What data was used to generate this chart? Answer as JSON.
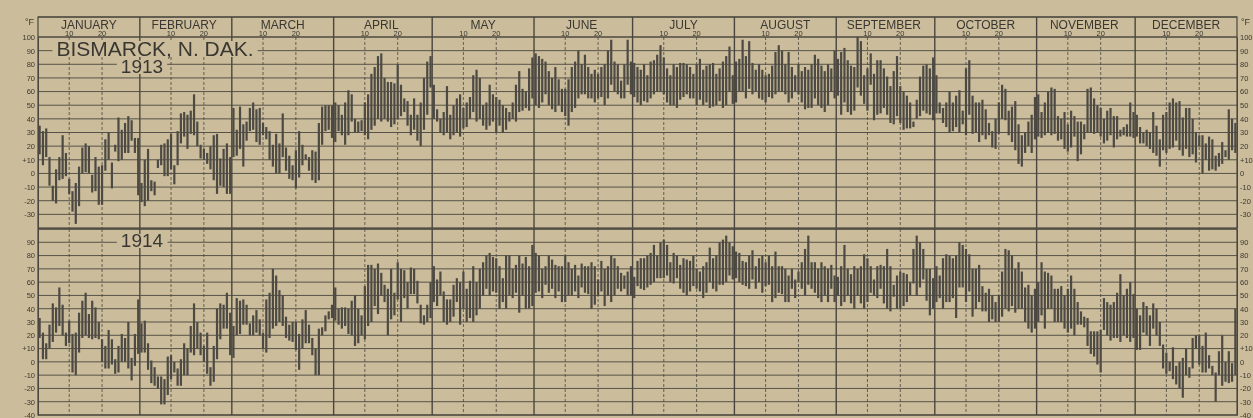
{
  "chart_data": [
    {
      "type": "bar",
      "title": "BISMARCK, N. DAK.",
      "annotations": [
        "1913"
      ],
      "ylabel": "°F",
      "y2label": "°F",
      "color": "#4d4a44",
      "grid": true,
      "xlim": [
        "--01-01",
        "--12-31"
      ],
      "x2lim": [
        "--01-01",
        "--12-31"
      ],
      "xticks": [
        {
          "value": "--01-10",
          "label": "10"
        },
        {
          "value": "--01-20",
          "label": "20"
        },
        {
          "value": "--02-01",
          "label": null
        },
        {
          "value": "--02-10",
          "label": "10"
        },
        {
          "value": "--02-20",
          "label": "20"
        },
        {
          "value": "--03-01",
          "label": null
        },
        {
          "value": "--03-10",
          "label": "10"
        },
        {
          "value": "--03-20",
          "label": "20"
        },
        {
          "value": "--04-01",
          "label": null
        },
        {
          "value": "--04-10",
          "label": "10"
        },
        {
          "value": "--04-20",
          "label": "20"
        },
        {
          "value": "--05-01",
          "label": null
        },
        {
          "value": "--05-10",
          "label": "10"
        },
        {
          "value": "--05-20",
          "label": "20"
        },
        {
          "value": "--06-01",
          "label": null
        },
        {
          "value": "--06-10",
          "label": "10"
        },
        {
          "value": "--06-20",
          "label": "20"
        },
        {
          "value": "--07-01",
          "label": null
        },
        {
          "value": "--07-10",
          "label": "10"
        },
        {
          "value": "--07-20",
          "label": "20"
        },
        {
          "value": "--08-01",
          "label": null
        },
        {
          "value": "--08-10",
          "label": "10"
        },
        {
          "value": "--08-20",
          "label": "20"
        },
        {
          "value": "--09-01",
          "label": null
        },
        {
          "value": "--09-10",
          "label": "10"
        },
        {
          "value": "--09-20",
          "label": "20"
        },
        {
          "value": "--10-01",
          "label": null
        },
        {
          "value": "--10-10",
          "label": "10"
        },
        {
          "value": "--10-20",
          "label": "20"
        },
        {
          "value": "--11-01",
          "label": null
        },
        {
          "value": "--11-10",
          "label": "10"
        },
        {
          "value": "--11-20",
          "label": "20"
        },
        {
          "value": "--12-01",
          "label": null
        },
        {
          "value": "--12-10",
          "label": "10"
        },
        {
          "value": "--12-20",
          "label": "20"
        }
      ],
      "x2ticks": [
        {
          "value": "--01-16",
          "label": "JANUARY"
        },
        {
          "value": "--02-14",
          "label": "FEBRUARY"
        },
        {
          "value": "--03-16",
          "label": "MARCH"
        },
        {
          "value": "--04-15",
          "label": "APRIL"
        },
        {
          "value": "--05-16",
          "label": "MAY"
        },
        {
          "value": "--06-15",
          "label": "JUNE"
        },
        {
          "value": "--07-16",
          "label": "JULY"
        },
        {
          "value": "--08-16",
          "label": "AUGUST"
        },
        {
          "value": "--09-15",
          "label": "SEPTEMBER"
        },
        {
          "value": "--10-16",
          "label": "OCTOBER"
        },
        {
          "value": "--11-15",
          "label": "NOVEMBER"
        },
        {
          "value": "--12-16",
          "label": "DECEMBER"
        }
      ],
      "ylim": [
        -40,
        100
      ],
      "yticks": [
        100,
        90,
        80,
        70,
        60,
        50,
        40,
        30,
        20,
        {
          "value": 10,
          "label": "+10"
        },
        0,
        -10,
        -20,
        -30
      ],
      "y2lim": [
        -40,
        100
      ],
      "y2ticks": [
        100,
        90,
        80,
        70,
        60,
        50,
        40,
        30,
        20,
        {
          "value": 10,
          "label": "+10"
        },
        0,
        -10,
        -20,
        -30
      ],
      "x": [
        "--01-01",
        "--01-02",
        "--01-03",
        "--01-04",
        "--01-05",
        "--01-06",
        "--01-07",
        "--01-08",
        "--01-09",
        "--01-10",
        "--01-11",
        "--01-12",
        "--01-13",
        "--01-14",
        "--01-15",
        "--01-16",
        "--01-17",
        "--01-18",
        "--01-19",
        "--01-20",
        "--01-21",
        "--01-22",
        "--01-23",
        "--01-24",
        "--01-25",
        "--01-26",
        "--01-27",
        "--01-28",
        "--01-29",
        "--01-30",
        "--01-31",
        "--02-01",
        "--02-02",
        "--02-03",
        "--02-04",
        "--02-05",
        "--02-06",
        "--02-07",
        "--02-08",
        "--02-09",
        "--02-10",
        "--02-11",
        "--02-12",
        "--02-13",
        "--02-14",
        "--02-15",
        "--02-16",
        "--02-17",
        "--02-18",
        "--02-19",
        "--02-20",
        "--02-21",
        "--02-22",
        "--02-23",
        "--02-24",
        "--02-25",
        "--02-26",
        "--02-27",
        "--02-28",
        "--03-01",
        "--03-02",
        "--03-03",
        "--03-04",
        "--03-05",
        "--03-06",
        "--03-07",
        "--03-08",
        "--03-09",
        "--03-10",
        "--03-11",
        "--03-12",
        "--03-13",
        "--03-14",
        "--03-15",
        "--03-16",
        "--03-17",
        "--03-18",
        "--03-19",
        "--03-20",
        "--03-21",
        "--03-22",
        "--03-23",
        "--03-24",
        "--03-25",
        "--03-26",
        "--03-27",
        "--03-28",
        "--03-29",
        "--03-30",
        "--03-31",
        "--04-01",
        "--04-02",
        "--04-03",
        "--04-04",
        "--04-05",
        "--04-06",
        "--04-07",
        "--04-08",
        "--04-09",
        "--04-10",
        "--04-11",
        "--04-12",
        "--04-13",
        "--04-14",
        "--04-15",
        "--04-16",
        "--04-17",
        "--04-18",
        "--04-19",
        "--04-20",
        "--04-21",
        "--04-22",
        "--04-23",
        "--04-24",
        "--04-25",
        "--04-26",
        "--04-27",
        "--04-28",
        "--04-29",
        "--04-30",
        "--05-01",
        "--05-02",
        "--05-03",
        "--05-04",
        "--05-05",
        "--05-06",
        "--05-07",
        "--05-08",
        "--05-09",
        "--05-10",
        "--05-11",
        "--05-12",
        "--05-13",
        "--05-14",
        "--05-15",
        "--05-16",
        "--05-17",
        "--05-18",
        "--05-19",
        "--05-20",
        "--05-21",
        "--05-22",
        "--05-23",
        "--05-24",
        "--05-25",
        "--05-26",
        "--05-27",
        "--05-28",
        "--05-29",
        "--05-30",
        "--05-31",
        "--06-01",
        "--06-02",
        "--06-03",
        "--06-04",
        "--06-05",
        "--06-06",
        "--06-07",
        "--06-08",
        "--06-09",
        "--06-10",
        "--06-11",
        "--06-12",
        "--06-13",
        "--06-14",
        "--06-15",
        "--06-16",
        "--06-17",
        "--06-18",
        "--06-19",
        "--06-20",
        "--06-21",
        "--06-22",
        "--06-23",
        "--06-24",
        "--06-25",
        "--06-26",
        "--06-27",
        "--06-28",
        "--06-29",
        "--06-30",
        "--07-01",
        "--07-02",
        "--07-03",
        "--07-04",
        "--07-05",
        "--07-06",
        "--07-07",
        "--07-08",
        "--07-09",
        "--07-10",
        "--07-11",
        "--07-12",
        "--07-13",
        "--07-14",
        "--07-15",
        "--07-16",
        "--07-17",
        "--07-18",
        "--07-19",
        "--07-20",
        "--07-21",
        "--07-22",
        "--07-23",
        "--07-24",
        "--07-25",
        "--07-26",
        "--07-27",
        "--07-28",
        "--07-29",
        "--07-30",
        "--07-31",
        "--08-01",
        "--08-02",
        "--08-03",
        "--08-04",
        "--08-05",
        "--08-06",
        "--08-07",
        "--08-08",
        "--08-09",
        "--08-10",
        "--08-11",
        "--08-12",
        "--08-13",
        "--08-14",
        "--08-15",
        "--08-16",
        "--08-17",
        "--08-18",
        "--08-19",
        "--08-20",
        "--08-21",
        "--08-22",
        "--08-23",
        "--08-24",
        "--08-25",
        "--08-26",
        "--08-27",
        "--08-28",
        "--08-29",
        "--08-30",
        "--08-31",
        "--09-01",
        "--09-02",
        "--09-03",
        "--09-04",
        "--09-05",
        "--09-06",
        "--09-07",
        "--09-08",
        "--09-09",
        "--09-10",
        "--09-11",
        "--09-12",
        "--09-13",
        "--09-14",
        "--09-15",
        "--09-16",
        "--09-17",
        "--09-18",
        "--09-19",
        "--09-20",
        "--09-21",
        "--09-22",
        "--09-23",
        "--09-24",
        "--09-25",
        "--09-26",
        "--09-27",
        "--09-28",
        "--09-29",
        "--09-30",
        "--10-01",
        "--10-02",
        "--10-03",
        "--10-04",
        "--10-05",
        "--10-06",
        "--10-07",
        "--10-08",
        "--10-09",
        "--10-10",
        "--10-11",
        "--10-12",
        "--10-13",
        "--10-14",
        "--10-15",
        "--10-16",
        "--10-17",
        "--10-18",
        "--10-19",
        "--10-20",
        "--10-21",
        "--10-22",
        "--10-23",
        "--10-24",
        "--10-25",
        "--10-26",
        "--10-27",
        "--10-28",
        "--10-29",
        "--10-30",
        "--10-31",
        "--11-01",
        "--11-02",
        "--11-03",
        "--11-04",
        "--11-05",
        "--11-06",
        "--11-07",
        "--11-08",
        "--11-09",
        "--11-10",
        "--11-11",
        "--11-12",
        "--11-13",
        "--11-14",
        "--11-15",
        "--11-16",
        "--11-17",
        "--11-18",
        "--11-19",
        "--11-20",
        "--11-21",
        "--11-22",
        "--11-23",
        "--11-24",
        "--11-25",
        "--11-26",
        "--11-27",
        "--11-28",
        "--11-29",
        "--11-30",
        "--12-01",
        "--12-02",
        "--12-03",
        "--12-04",
        "--12-05",
        "--12-06",
        "--12-07",
        "--12-08",
        "--12-09",
        "--12-10",
        "--12-11",
        "--12-12",
        "--12-13",
        "--12-14",
        "--12-15",
        "--12-16",
        "--12-17",
        "--12-18",
        "--12-19",
        "--12-20",
        "--12-21",
        "--12-22",
        "--12-23",
        "--12-24",
        "--12-25",
        "--12-26",
        "--12-27",
        "--12-28",
        "--12-29",
        "--12-30",
        "--12-31"
      ],
      "base": [
        14,
        6,
        12,
        -9,
        -20,
        -22,
        -5,
        -4,
        -2,
        -15,
        -28,
        -37,
        -24,
        0,
        1,
        0,
        -14,
        -13,
        -23,
        -23,
        2,
        10,
        -11,
        16,
        9,
        10,
        15,
        15,
        24,
        15,
        -16,
        -21,
        -24,
        -20,
        -13,
        -16,
        4,
        6,
        -2,
        -2,
        3,
        -8,
        6,
        22,
        27,
        18,
        29,
        28,
        20,
        11,
        10,
        7,
        3,
        -5,
        -15,
        -9,
        -10,
        -15,
        -15,
        12,
        13,
        18,
        5,
        24,
        31,
        32,
        23,
        21,
        28,
        25,
        10,
        5,
        0,
        0,
        12,
        2,
        -4,
        -5,
        -11,
        -3,
        6,
        10,
        2,
        -5,
        -7,
        -5,
        21,
        31,
        32,
        26,
        23,
        31,
        28,
        21,
        28,
        38,
        30,
        30,
        31,
        28,
        25,
        32,
        35,
        40,
        38,
        40,
        38,
        34,
        36,
        40,
        42,
        45,
        35,
        28,
        32,
        24,
        20,
        32,
        43,
        63,
        40,
        38,
        30,
        28,
        30,
        25,
        28,
        30,
        27,
        33,
        34,
        40,
        45,
        38,
        40,
        35,
        32,
        35,
        38,
        30,
        35,
        30,
        32,
        38,
        40,
        38,
        45,
        46,
        48,
        46,
        55,
        50,
        48,
        52,
        58,
        50,
        47,
        45,
        50,
        45,
        42,
        35,
        45,
        48,
        55,
        58,
        58,
        55,
        55,
        52,
        55,
        56,
        50,
        55,
        65,
        60,
        58,
        55,
        55,
        65,
        58,
        56,
        52,
        50,
        53,
        52,
        55,
        58,
        60,
        60,
        58,
        52,
        50,
        50,
        48,
        54,
        56,
        58,
        55,
        55,
        50,
        54,
        50,
        52,
        48,
        49,
        50,
        53,
        48,
        50,
        60,
        51,
        52,
        60,
        60,
        55,
        62,
        58,
        60,
        55,
        54,
        52,
        56,
        55,
        58,
        60,
        60,
        58,
        52,
        55,
        60,
        58,
        52,
        47,
        48,
        48,
        55,
        50,
        48,
        45,
        50,
        60,
        55,
        57,
        43,
        52,
        45,
        43,
        46,
        63,
        57,
        51,
        46,
        65,
        39,
        43,
        44,
        48,
        43,
        37,
        36,
        42,
        37,
        32,
        33,
        33,
        34,
        40,
        42,
        46,
        44,
        43,
        39,
        44,
        44,
        37,
        34,
        30,
        31,
        34,
        30,
        36,
        28,
        43,
        29,
        30,
        23,
        28,
        25,
        28,
        19,
        18,
        29,
        40,
        39,
        28,
        23,
        17,
        7,
        5,
        15,
        20,
        15,
        25,
        27,
        26,
        28,
        30,
        28,
        29,
        24,
        25,
        18,
        16,
        19,
        27,
        9,
        14,
        25,
        30,
        30,
        29,
        30,
        27,
        22,
        24,
        28,
        19,
        25,
        27,
        28,
        27,
        27,
        26,
        27,
        22,
        22,
        20,
        18,
        15,
        13,
        5,
        17,
        15,
        18,
        19,
        24,
        17,
        13,
        18,
        12,
        14,
        8,
        20,
        0,
        10,
        2,
        3,
        2,
        5,
        7,
        12,
        10,
        17,
        15
      ],
      "values": [
        21,
        25,
        21,
        21,
        11,
        25,
        17,
        32,
        17,
        11,
        15,
        30,
        29,
        19,
        21,
        20,
        13,
        25,
        28,
        29,
        23,
        20,
        19,
        5,
        32,
        22,
        22,
        27,
        15,
        11,
        42,
        14,
        34,
        38,
        8,
        10,
        6,
        15,
        24,
        27,
        26,
        14,
        25,
        22,
        18,
        25,
        17,
        30,
        18,
        10,
        8,
        8,
        17,
        33,
        44,
        20,
        28,
        37,
        27,
        36,
        19,
        31,
        31,
        14,
        17,
        20,
        24,
        27,
        9,
        9,
        21,
        16,
        29,
        22,
        32,
        17,
        17,
        11,
        28,
        34,
        15,
        4,
        10,
        22,
        23,
        42,
        28,
        19,
        18,
        24,
        29,
        19,
        15,
        31,
        33,
        20,
        10,
        8,
        8,
        24,
        33,
        41,
        43,
        46,
        50,
        30,
        29,
        33,
        30,
        40,
        23,
        10,
        18,
        15,
        23,
        19,
        32,
        38,
        39,
        23,
        25,
        9,
        10,
        17,
        34,
        18,
        22,
        25,
        31,
        15,
        18,
        16,
        27,
        38,
        30,
        15,
        20,
        30,
        20,
        26,
        19,
        20,
        16,
        7,
        12,
        27,
        30,
        16,
        12,
        31,
        30,
        38,
        38,
        32,
        24,
        25,
        23,
        33,
        19,
        17,
        20,
        34,
        33,
        34,
        35,
        22,
        29,
        23,
        18,
        24,
        18,
        22,
        30,
        35,
        33,
        22,
        22,
        13,
        25,
        33,
        24,
        25,
        26,
        26,
        27,
        20,
        27,
        25,
        27,
        34,
        27,
        25,
        22,
        30,
        30,
        27,
        25,
        22,
        23,
        18,
        30,
        30,
        26,
        27,
        32,
        32,
        23,
        24,
        34,
        36,
        33,
        21,
        30,
        24,
        38,
        31,
        35,
        23,
        16,
        25,
        22,
        20,
        17,
        24,
        31,
        34,
        30,
        22,
        37,
        23,
        12,
        22,
        23,
        31,
        28,
        32,
        32,
        34,
        31,
        30,
        30,
        17,
        35,
        27,
        46,
        40,
        38,
        36,
        32,
        37,
        40,
        21,
        31,
        23,
        34,
        40,
        39,
        29,
        28,
        27,
        39,
        44,
        27,
        28,
        24,
        19,
        4,
        14,
        29,
        33,
        36,
        34,
        46,
        28,
        8,
        11,
        18,
        30,
        21,
        23,
        31,
        10,
        49,
        40,
        28,
        22,
        29,
        26,
        22,
        9,
        12,
        22,
        23,
        25,
        23,
        18,
        26,
        36,
        29,
        23,
        15,
        18,
        28,
        31,
        31,
        19,
        24,
        30,
        35,
        33,
        18,
        15,
        27,
        20,
        27,
        15,
        29,
        24,
        11,
        32,
        33,
        26,
        20,
        21,
        18,
        22,
        20,
        23,
        17,
        5,
        6,
        9,
        25,
        19,
        16,
        12,
        8,
        12,
        12,
        30,
        22,
        20,
        26,
        30,
        34,
        36,
        28,
        36,
        28,
        30,
        36,
        26,
        22,
        8,
        28,
        12,
        25,
        22,
        11,
        10,
        16,
        5,
        37,
        23,
        22
      ]
    },
    {
      "type": "bar",
      "annotations": [
        "1914"
      ],
      "color": "#4d4a44",
      "grid": true,
      "tick_labels": "y",
      "xlim": [
        "--01-01",
        "--12-31"
      ],
      "xticks": [
        {
          "value": "--01-10",
          "label": null
        },
        {
          "value": "--01-20",
          "label": null
        },
        {
          "value": "--02-01",
          "label": null
        },
        {
          "value": "--02-10",
          "label": null
        },
        {
          "value": "--02-20",
          "label": null
        },
        {
          "value": "--03-01",
          "label": null
        },
        {
          "value": "--03-10",
          "label": null
        },
        {
          "value": "--03-20",
          "label": null
        },
        {
          "value": "--04-01",
          "label": null
        },
        {
          "value": "--04-10",
          "label": null
        },
        {
          "value": "--04-20",
          "label": null
        },
        {
          "value": "--05-01",
          "label": null
        },
        {
          "value": "--05-10",
          "label": null
        },
        {
          "value": "--05-20",
          "label": null
        },
        {
          "value": "--06-01",
          "label": null
        },
        {
          "value": "--06-10",
          "label": null
        },
        {
          "value": "--06-20",
          "label": null
        },
        {
          "value": "--07-01",
          "label": null
        },
        {
          "value": "--07-10",
          "label": null
        },
        {
          "value": "--07-20",
          "label": null
        },
        {
          "value": "--08-01",
          "label": null
        },
        {
          "value": "--08-10",
          "label": null
        },
        {
          "value": "--08-20",
          "label": null
        },
        {
          "value": "--09-01",
          "label": null
        },
        {
          "value": "--09-10",
          "label": null
        },
        {
          "value": "--09-20",
          "label": null
        },
        {
          "value": "--10-01",
          "label": null
        },
        {
          "value": "--10-10",
          "label": null
        },
        {
          "value": "--10-20",
          "label": null
        },
        {
          "value": "--11-01",
          "label": null
        },
        {
          "value": "--11-10",
          "label": null
        },
        {
          "value": "--11-20",
          "label": null
        },
        {
          "value": "--12-01",
          "label": null
        },
        {
          "value": "--12-10",
          "label": null
        },
        {
          "value": "--12-20",
          "label": null
        }
      ],
      "ylim": [
        -40,
        100
      ],
      "yticks": [
        90,
        80,
        70,
        60,
        50,
        40,
        30,
        20,
        {
          "value": 10,
          "label": "+10"
        },
        0,
        -10,
        -20,
        -30,
        -40
      ],
      "y2lim": [
        -40,
        100
      ],
      "y2ticks": [
        90,
        80,
        70,
        60,
        50,
        40,
        30,
        20,
        {
          "value": 10,
          "label": "+10"
        },
        0,
        -10,
        -20,
        -30,
        -40
      ],
      "x": [
        "--01-01",
        "--01-02",
        "--01-03",
        "--01-04",
        "--01-05",
        "--01-06",
        "--01-07",
        "--01-08",
        "--01-09",
        "--01-10",
        "--01-11",
        "--01-12",
        "--01-13",
        "--01-14",
        "--01-15",
        "--01-16",
        "--01-17",
        "--01-18",
        "--01-19",
        "--01-20",
        "--01-21",
        "--01-22",
        "--01-23",
        "--01-24",
        "--01-25",
        "--01-26",
        "--01-27",
        "--01-28",
        "--01-29",
        "--01-30",
        "--01-31",
        "--02-01",
        "--02-02",
        "--02-03",
        "--02-04",
        "--02-05",
        "--02-06",
        "--02-07",
        "--02-08",
        "--02-09",
        "--02-10",
        "--02-11",
        "--02-12",
        "--02-13",
        "--02-14",
        "--02-15",
        "--02-16",
        "--02-17",
        "--02-18",
        "--02-19",
        "--02-20",
        "--02-21",
        "--02-22",
        "--02-23",
        "--02-24",
        "--02-25",
        "--02-26",
        "--02-27",
        "--02-28",
        "--03-01",
        "--03-02",
        "--03-03",
        "--03-04",
        "--03-05",
        "--03-06",
        "--03-07",
        "--03-08",
        "--03-09",
        "--03-10",
        "--03-11",
        "--03-12",
        "--03-13",
        "--03-14",
        "--03-15",
        "--03-16",
        "--03-17",
        "--03-18",
        "--03-19",
        "--03-20",
        "--03-21",
        "--03-22",
        "--03-23",
        "--03-24",
        "--03-25",
        "--03-26",
        "--03-27",
        "--03-28",
        "--03-29",
        "--03-30",
        "--03-31",
        "--04-01",
        "--04-02",
        "--04-03",
        "--04-04",
        "--04-05",
        "--04-06",
        "--04-07",
        "--04-08",
        "--04-09",
        "--04-10",
        "--04-11",
        "--04-12",
        "--04-13",
        "--04-14",
        "--04-15",
        "--04-16",
        "--04-17",
        "--04-18",
        "--04-19",
        "--04-20",
        "--04-21",
        "--04-22",
        "--04-23",
        "--04-24",
        "--04-25",
        "--04-26",
        "--04-27",
        "--04-28",
        "--04-29",
        "--04-30",
        "--05-01",
        "--05-02",
        "--05-03",
        "--05-04",
        "--05-05",
        "--05-06",
        "--05-07",
        "--05-08",
        "--05-09",
        "--05-10",
        "--05-11",
        "--05-12",
        "--05-13",
        "--05-14",
        "--05-15",
        "--05-16",
        "--05-17",
        "--05-18",
        "--05-19",
        "--05-20",
        "--05-21",
        "--05-22",
        "--05-23",
        "--05-24",
        "--05-25",
        "--05-26",
        "--05-27",
        "--05-28",
        "--05-29",
        "--05-30",
        "--05-31",
        "--06-01",
        "--06-02",
        "--06-03",
        "--06-04",
        "--06-05",
        "--06-06",
        "--06-07",
        "--06-08",
        "--06-09",
        "--06-10",
        "--06-11",
        "--06-12",
        "--06-13",
        "--06-14",
        "--06-15",
        "--06-16",
        "--06-17",
        "--06-18",
        "--06-19",
        "--06-20",
        "--06-21",
        "--06-22",
        "--06-23",
        "--06-24",
        "--06-25",
        "--06-26",
        "--06-27",
        "--06-28",
        "--06-29",
        "--06-30",
        "--07-01",
        "--07-02",
        "--07-03",
        "--07-04",
        "--07-05",
        "--07-06",
        "--07-07",
        "--07-08",
        "--07-09",
        "--07-10",
        "--07-11",
        "--07-12",
        "--07-13",
        "--07-14",
        "--07-15",
        "--07-16",
        "--07-17",
        "--07-18",
        "--07-19",
        "--07-20",
        "--07-21",
        "--07-22",
        "--07-23",
        "--07-24",
        "--07-25",
        "--07-26",
        "--07-27",
        "--07-28",
        "--07-29",
        "--07-30",
        "--07-31",
        "--08-01",
        "--08-02",
        "--08-03",
        "--08-04",
        "--08-05",
        "--08-06",
        "--08-07",
        "--08-08",
        "--08-09",
        "--08-10",
        "--08-11",
        "--08-12",
        "--08-13",
        "--08-14",
        "--08-15",
        "--08-16",
        "--08-17",
        "--08-18",
        "--08-19",
        "--08-20",
        "--08-21",
        "--08-22",
        "--08-23",
        "--08-24",
        "--08-25",
        "--08-26",
        "--08-27",
        "--08-28",
        "--08-29",
        "--08-30",
        "--08-31",
        "--09-01",
        "--09-02",
        "--09-03",
        "--09-04",
        "--09-05",
        "--09-06",
        "--09-07",
        "--09-08",
        "--09-09",
        "--09-10",
        "--09-11",
        "--09-12",
        "--09-13",
        "--09-14",
        "--09-15",
        "--09-16",
        "--09-17",
        "--09-18",
        "--09-19",
        "--09-20",
        "--09-21",
        "--09-22",
        "--09-23",
        "--09-24",
        "--09-25",
        "--09-26",
        "--09-27",
        "--09-28",
        "--09-29",
        "--09-30",
        "--10-01",
        "--10-02",
        "--10-03",
        "--10-04",
        "--10-05",
        "--10-06",
        "--10-07",
        "--10-08",
        "--10-09",
        "--10-10",
        "--10-11",
        "--10-12",
        "--10-13",
        "--10-14",
        "--10-15",
        "--10-16",
        "--10-17",
        "--10-18",
        "--10-19",
        "--10-20",
        "--10-21",
        "--10-22",
        "--10-23",
        "--10-24",
        "--10-25",
        "--10-26",
        "--10-27",
        "--10-28",
        "--10-29",
        "--10-30",
        "--10-31",
        "--11-01",
        "--11-02",
        "--11-03",
        "--11-04",
        "--11-05",
        "--11-06",
        "--11-07",
        "--11-08",
        "--11-09",
        "--11-10",
        "--11-11",
        "--11-12",
        "--11-13",
        "--11-14",
        "--11-15",
        "--11-16",
        "--11-17",
        "--11-18",
        "--11-19",
        "--11-20",
        "--11-21",
        "--11-22",
        "--11-23",
        "--11-24",
        "--11-25",
        "--11-26",
        "--11-27",
        "--11-28",
        "--11-29",
        "--11-30",
        "--12-01",
        "--12-02",
        "--12-03",
        "--12-04",
        "--12-05",
        "--12-06",
        "--12-07",
        "--12-08",
        "--12-09",
        "--12-10",
        "--12-11",
        "--12-12",
        "--12-13",
        "--12-14",
        "--12-15",
        "--12-16",
        "--12-17",
        "--12-18",
        "--12-19",
        "--12-20",
        "--12-21",
        "--12-22",
        "--12-23",
        "--12-24",
        "--12-25",
        "--12-26",
        "--12-27",
        "--12-28",
        "--12-29",
        "--12-30",
        "--12-31"
      ],
      "base": [
        18,
        2,
        2,
        10,
        15,
        22,
        27,
        20,
        12,
        14,
        -8,
        -10,
        7,
        18,
        20,
        18,
        17,
        18,
        17,
        0,
        -5,
        -5,
        -2,
        -9,
        -8,
        0,
        0,
        -5,
        -14,
        -3,
        6,
        7,
        7,
        -6,
        -16,
        -18,
        -20,
        -32,
        -32,
        -25,
        -13,
        -8,
        -18,
        -18,
        -10,
        -10,
        7,
        5,
        10,
        5,
        0,
        -9,
        -18,
        -15,
        2,
        17,
        25,
        25,
        5,
        3,
        20,
        21,
        28,
        28,
        20,
        20,
        22,
        20,
        10,
        7,
        18,
        25,
        27,
        30,
        27,
        18,
        16,
        15,
        9,
        -6,
        10,
        14,
        14,
        5,
        -10,
        -10,
        20,
        23,
        32,
        33,
        31,
        28,
        25,
        27,
        21,
        20,
        12,
        14,
        20,
        17,
        27,
        30,
        42,
        36,
        50,
        45,
        20,
        32,
        35,
        47,
        30,
        48,
        40,
        51,
        51,
        44,
        29,
        28,
        30,
        33,
        45,
        42,
        50,
        30,
        28,
        30,
        34,
        45,
        28,
        40,
        30,
        33,
        30,
        35,
        40,
        50,
        55,
        50,
        53,
        52,
        40,
        45,
        40,
        50,
        48,
        52,
        37,
        50,
        40,
        40,
        42,
        52,
        53,
        48,
        58,
        52,
        55,
        48,
        53,
        45,
        45,
        50,
        50,
        53,
        48,
        56,
        52,
        51,
        40,
        43,
        50,
        53,
        42,
        50,
        45,
        50,
        55,
        53,
        55,
        50,
        50,
        48,
        57,
        55,
        54,
        56,
        58,
        60,
        63,
        63,
        63,
        65,
        60,
        59,
        63,
        55,
        52,
        50,
        53,
        57,
        55,
        53,
        48,
        52,
        60,
        55,
        53,
        58,
        58,
        60,
        65,
        62,
        63,
        60,
        58,
        57,
        55,
        62,
        55,
        60,
        52,
        57,
        58,
        45,
        48,
        52,
        51,
        45,
        45,
        55,
        48,
        60,
        55,
        50,
        58,
        55,
        52,
        48,
        45,
        50,
        45,
        55,
        45,
        50,
        42,
        45,
        50,
        44,
        40,
        50,
        44,
        40,
        45,
        52,
        50,
        48,
        55,
        44,
        40,
        38,
        49,
        40,
        40,
        42,
        45,
        50,
        59,
        50,
        56,
        62,
        46,
        35,
        40,
        45,
        48,
        40,
        45,
        45,
        48,
        33,
        56,
        56,
        45,
        53,
        34,
        40,
        45,
        38,
        38,
        30,
        32,
        30,
        30,
        34,
        40,
        38,
        42,
        37,
        40,
        40,
        30,
        25,
        22,
        25,
        30,
        35,
        25,
        40,
        40,
        30,
        30,
        30,
        25,
        22,
        25,
        20,
        28,
        28,
        26,
        12,
        6,
        4,
        -2,
        -8,
        24,
        20,
        16,
        18,
        18,
        15,
        20,
        18,
        15,
        18,
        9,
        9,
        22,
        20,
        12,
        25,
        20,
        12,
        -5,
        -9,
        -7,
        -13,
        -17,
        -20,
        -27,
        -10,
        -12,
        -5,
        10,
        -2,
        -8,
        -8,
        -5,
        -10,
        -30,
        -10,
        -18,
        -15,
        -16,
        -15,
        -10
      ],
      "values": [
        15,
        20,
        12,
        18,
        29,
        19,
        29,
        23,
        10,
        17,
        29,
        32,
        30,
        28,
        32,
        18,
        29,
        23,
        13,
        17,
        17,
        29,
        19,
        11,
        20,
        21,
        18,
        35,
        17,
        24,
        41,
        22,
        24,
        20,
        17,
        14,
        9,
        21,
        19,
        29,
        18,
        8,
        13,
        20,
        24,
        20,
        20,
        39,
        20,
        17,
        12,
        31,
        14,
        27,
        38,
        27,
        18,
        27,
        32,
        24,
        28,
        25,
        19,
        15,
        9,
        15,
        17,
        12,
        12,
        40,
        34,
        45,
        38,
        24,
        23,
        16,
        12,
        15,
        21,
        27,
        22,
        25,
        14,
        13,
        20,
        35,
        6,
        12,
        6,
        10,
        25,
        12,
        16,
        14,
        19,
        26,
        38,
        26,
        15,
        40,
        46,
        43,
        28,
        38,
        17,
        13,
        35,
        38,
        17,
        28,
        40,
        21,
        20,
        20,
        19,
        17,
        14,
        7,
        13,
        27,
        27,
        20,
        18,
        23,
        19,
        17,
        24,
        18,
        32,
        28,
        25,
        28,
        42,
        25,
        30,
        25,
        25,
        32,
        26,
        26,
        32,
        18,
        40,
        30,
        22,
        21,
        43,
        24,
        39,
        32,
        46,
        30,
        27,
        22,
        14,
        28,
        22,
        25,
        19,
        27,
        35,
        25,
        20,
        20,
        17,
        18,
        20,
        21,
        35,
        29,
        12,
        23,
        28,
        22,
        35,
        28,
        17,
        14,
        10,
        18,
        22,
        16,
        19,
        23,
        24,
        24,
        24,
        28,
        17,
        27,
        29,
        23,
        15,
        23,
        17,
        18,
        26,
        27,
        23,
        23,
        15,
        15,
        24,
        23,
        26,
        23,
        27,
        32,
        34,
        35,
        25,
        25,
        20,
        22,
        18,
        18,
        25,
        22,
        17,
        18,
        28,
        18,
        22,
        27,
        35,
        20,
        21,
        25,
        20,
        15,
        14,
        8,
        20,
        35,
        37,
        20,
        23,
        22,
        30,
        22,
        25,
        18,
        20,
        14,
        30,
        43,
        20,
        22,
        32,
        20,
        28,
        41,
        33,
        20,
        12,
        24,
        18,
        28,
        45,
        34,
        9,
        25,
        28,
        25,
        21,
        10,
        26,
        45,
        34,
        23,
        24,
        35,
        23,
        27,
        17,
        38,
        36,
        35,
        30,
        47,
        34,
        32,
        40,
        28,
        36,
        30,
        28,
        19,
        14,
        25,
        18,
        15,
        20,
        34,
        45,
        46,
        38,
        33,
        35,
        28,
        26,
        33,
        28,
        30,
        30,
        40,
        43,
        27,
        25,
        25,
        25,
        27,
        25,
        33,
        40,
        35,
        17,
        10,
        8,
        21,
        17,
        19,
        25,
        32,
        24,
        25,
        27,
        27,
        34,
        51,
        30,
        37,
        45,
        33,
        31,
        26,
        23,
        22,
        23,
        19,
        20,
        18,
        18,
        16,
        7,
        24,
        14,
        20,
        30,
        20,
        8,
        23,
        10,
        22,
        20,
        30,
        10,
        7,
        22,
        18,
        38,
        15,
        24,
        14,
        50
      ]
    }
  ]
}
